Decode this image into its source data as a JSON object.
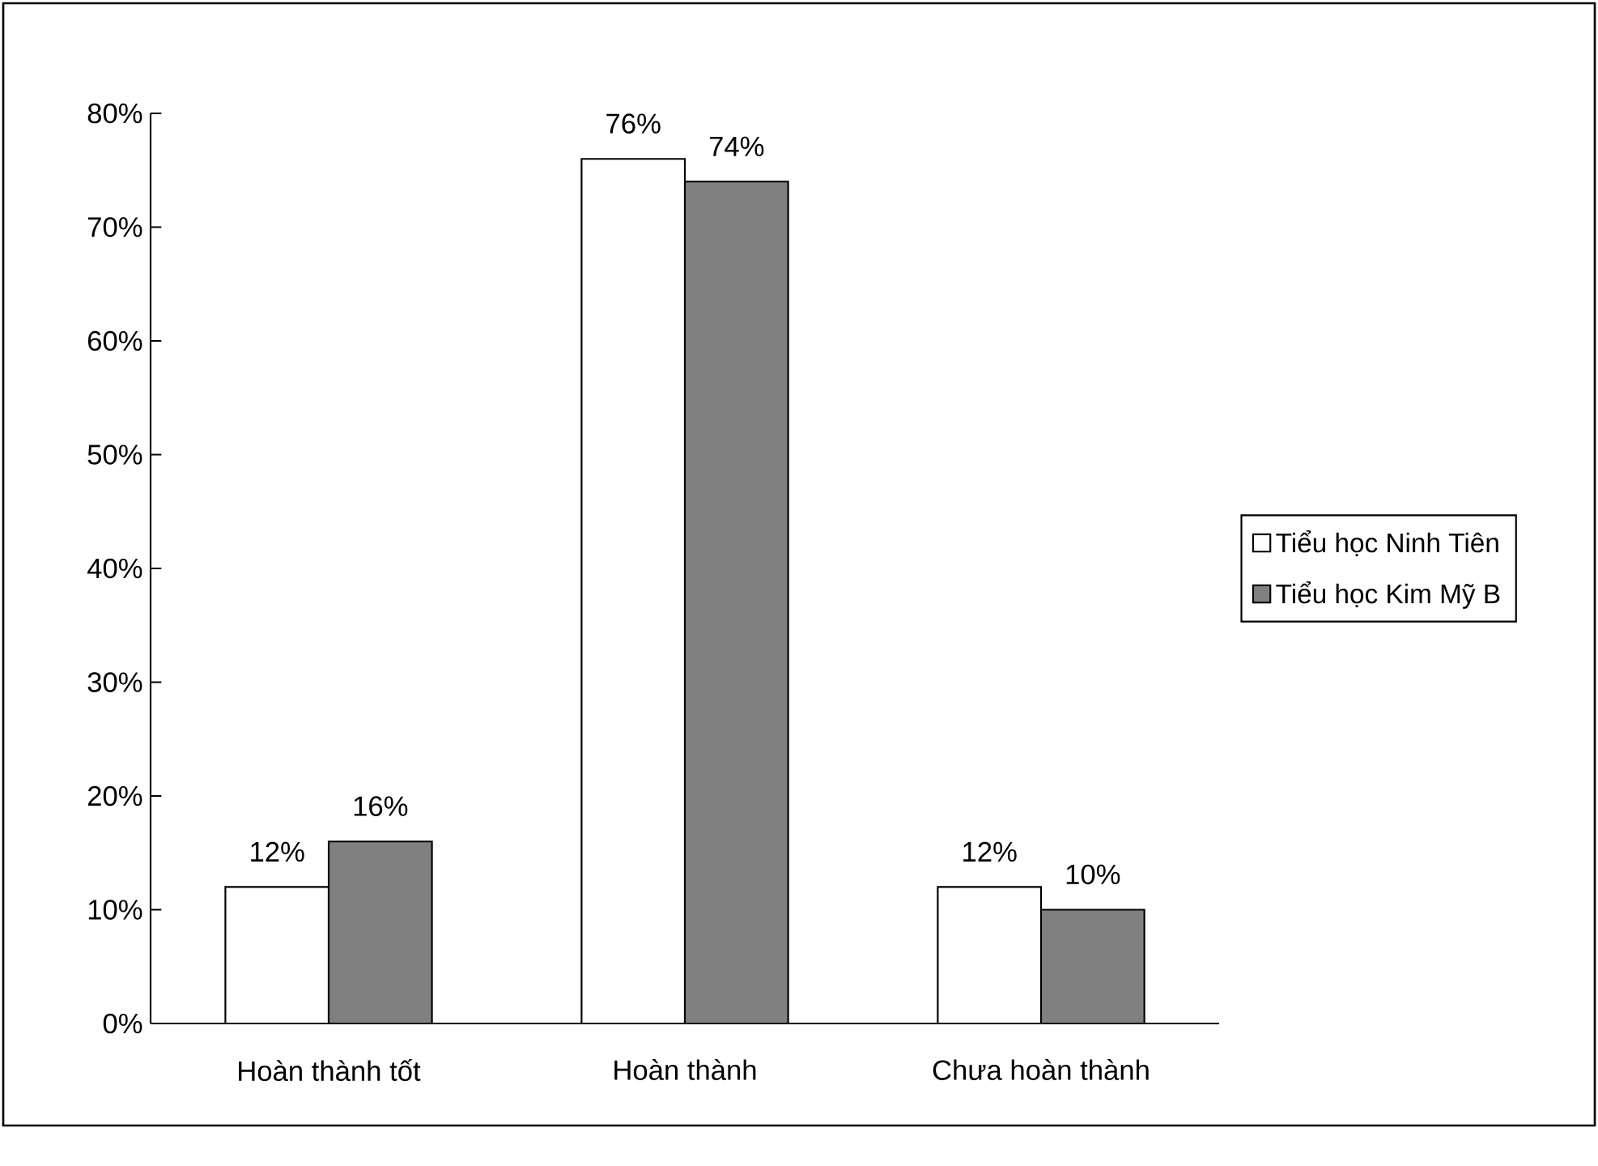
{
  "chart_data": {
    "type": "bar",
    "categories": [
      "Hoàn thành tốt",
      "Hoàn thành",
      "Chưa hoàn thành"
    ],
    "series": [
      {
        "name": "Tiểu học Ninh Tiên",
        "color": "#ffffff",
        "values": [
          12,
          76,
          12
        ],
        "value_labels": [
          "12%",
          "76%",
          "12%"
        ]
      },
      {
        "name": "Tiểu học Kim Mỹ B",
        "color": "#808080",
        "values": [
          16,
          74,
          10
        ],
        "value_labels": [
          "16%",
          "74%",
          "10%"
        ]
      }
    ],
    "ylim": [
      0,
      80
    ],
    "yticks": [
      {
        "value": 0,
        "label": "0%"
      },
      {
        "value": 10,
        "label": "10%"
      },
      {
        "value": 20,
        "label": "20%"
      },
      {
        "value": 30,
        "label": "30%"
      },
      {
        "value": 40,
        "label": "40%"
      },
      {
        "value": 50,
        "label": "50%"
      },
      {
        "value": 60,
        "label": "60%"
      },
      {
        "value": 70,
        "label": "70%"
      },
      {
        "value": 80,
        "label": "80%"
      }
    ],
    "grid": false,
    "legend": "right"
  }
}
